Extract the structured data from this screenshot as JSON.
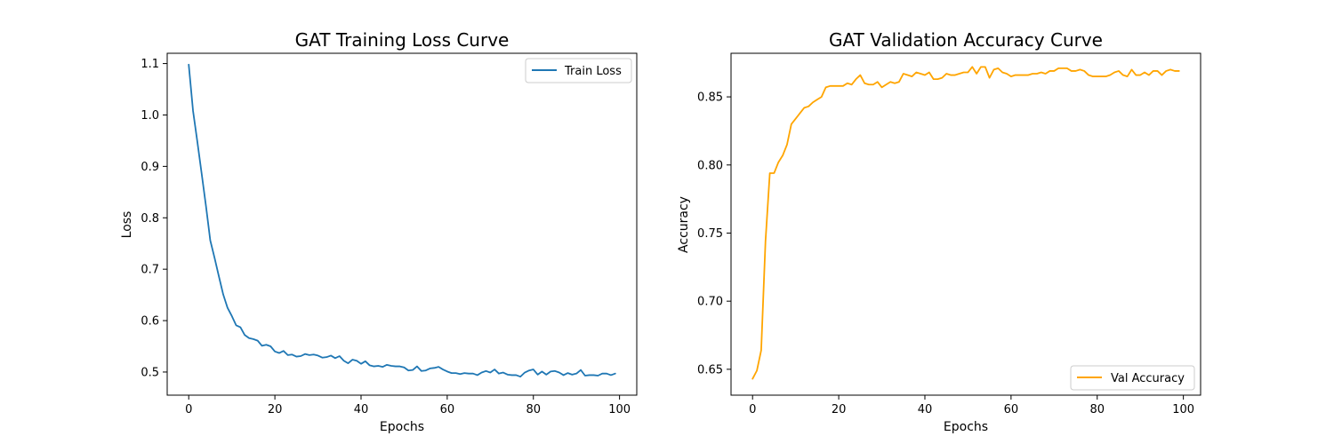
{
  "chart_data": [
    {
      "type": "line",
      "title": "GAT Training Loss Curve",
      "xlabel": "Epochs",
      "ylabel": "Loss",
      "xlim": [
        -5,
        104
      ],
      "ylim": [
        0.455,
        1.12
      ],
      "xticks": [
        0,
        20,
        40,
        60,
        80,
        100
      ],
      "yticks": [
        0.5,
        0.6,
        0.7,
        0.8,
        0.9,
        1.0,
        1.1
      ],
      "ytick_format": 1,
      "grid": false,
      "legend": "top-right",
      "series": [
        {
          "name": "Train Loss",
          "color": "#1f77b4",
          "x": [
            0,
            1,
            2,
            3,
            4,
            5,
            6,
            7,
            8,
            9,
            10,
            11,
            12,
            13,
            14,
            15,
            16,
            17,
            18,
            19,
            20,
            21,
            22,
            23,
            24,
            25,
            26,
            27,
            28,
            29,
            30,
            31,
            32,
            33,
            34,
            35,
            36,
            37,
            38,
            39,
            40,
            41,
            42,
            43,
            44,
            45,
            46,
            47,
            48,
            49,
            50,
            51,
            52,
            53,
            54,
            55,
            56,
            57,
            58,
            59,
            60,
            61,
            62,
            63,
            64,
            65,
            66,
            67,
            68,
            69,
            70,
            71,
            72,
            73,
            74,
            75,
            76,
            77,
            78,
            79,
            80,
            81,
            82,
            83,
            84,
            85,
            86,
            87,
            88,
            89,
            90,
            91,
            92,
            93,
            94,
            95,
            96,
            97,
            98,
            99
          ],
          "values": [
            1.098,
            1.008,
            0.948,
            0.886,
            0.823,
            0.756,
            0.722,
            0.686,
            0.651,
            0.625,
            0.609,
            0.591,
            0.587,
            0.572,
            0.566,
            0.564,
            0.561,
            0.551,
            0.553,
            0.55,
            0.54,
            0.537,
            0.541,
            0.533,
            0.534,
            0.53,
            0.531,
            0.535,
            0.533,
            0.534,
            0.532,
            0.528,
            0.529,
            0.532,
            0.527,
            0.531,
            0.522,
            0.517,
            0.524,
            0.522,
            0.516,
            0.521,
            0.513,
            0.511,
            0.512,
            0.51,
            0.514,
            0.512,
            0.511,
            0.511,
            0.509,
            0.503,
            0.504,
            0.511,
            0.502,
            0.503,
            0.507,
            0.508,
            0.51,
            0.505,
            0.501,
            0.498,
            0.498,
            0.496,
            0.498,
            0.497,
            0.497,
            0.494,
            0.499,
            0.502,
            0.499,
            0.505,
            0.497,
            0.499,
            0.495,
            0.494,
            0.494,
            0.491,
            0.499,
            0.503,
            0.505,
            0.495,
            0.501,
            0.495,
            0.501,
            0.502,
            0.499,
            0.494,
            0.498,
            0.495,
            0.497,
            0.504,
            0.493,
            0.494,
            0.494,
            0.493,
            0.497,
            0.497,
            0.494,
            0.497
          ]
        }
      ]
    },
    {
      "type": "line",
      "title": "GAT Validation Accuracy Curve",
      "xlabel": "Epochs",
      "ylabel": "Accuracy",
      "xlim": [
        -5,
        104
      ],
      "ylim": [
        0.631,
        0.882
      ],
      "xticks": [
        0,
        20,
        40,
        60,
        80,
        100
      ],
      "yticks": [
        0.65,
        0.7,
        0.75,
        0.8,
        0.85
      ],
      "ytick_format": 2,
      "grid": false,
      "legend": "bottom-right",
      "series": [
        {
          "name": "Val Accuracy",
          "color": "#ffa500",
          "x": [
            0,
            1,
            2,
            3,
            4,
            5,
            6,
            7,
            8,
            9,
            10,
            11,
            12,
            13,
            14,
            15,
            16,
            17,
            18,
            19,
            20,
            21,
            22,
            23,
            24,
            25,
            26,
            27,
            28,
            29,
            30,
            31,
            32,
            33,
            34,
            35,
            36,
            37,
            38,
            39,
            40,
            41,
            42,
            43,
            44,
            45,
            46,
            47,
            48,
            49,
            50,
            51,
            52,
            53,
            54,
            55,
            56,
            57,
            58,
            59,
            60,
            61,
            62,
            63,
            64,
            65,
            66,
            67,
            68,
            69,
            70,
            71,
            72,
            73,
            74,
            75,
            76,
            77,
            78,
            79,
            80,
            81,
            82,
            83,
            84,
            85,
            86,
            87,
            88,
            89,
            90,
            91,
            92,
            93,
            94,
            95,
            96,
            97,
            98,
            99
          ],
          "values": [
            0.643,
            0.649,
            0.664,
            0.744,
            0.794,
            0.794,
            0.802,
            0.807,
            0.815,
            0.83,
            0.834,
            0.838,
            0.842,
            0.843,
            0.846,
            0.848,
            0.85,
            0.857,
            0.858,
            0.858,
            0.858,
            0.858,
            0.86,
            0.859,
            0.863,
            0.866,
            0.86,
            0.859,
            0.859,
            0.861,
            0.857,
            0.859,
            0.861,
            0.86,
            0.861,
            0.867,
            0.866,
            0.865,
            0.868,
            0.867,
            0.866,
            0.868,
            0.863,
            0.863,
            0.864,
            0.867,
            0.866,
            0.866,
            0.867,
            0.868,
            0.868,
            0.872,
            0.867,
            0.872,
            0.872,
            0.864,
            0.87,
            0.871,
            0.868,
            0.867,
            0.865,
            0.866,
            0.866,
            0.866,
            0.866,
            0.867,
            0.867,
            0.868,
            0.867,
            0.869,
            0.869,
            0.871,
            0.871,
            0.871,
            0.869,
            0.869,
            0.87,
            0.869,
            0.866,
            0.865,
            0.865,
            0.865,
            0.865,
            0.866,
            0.868,
            0.869,
            0.866,
            0.865,
            0.87,
            0.866,
            0.866,
            0.868,
            0.866,
            0.869,
            0.869,
            0.866,
            0.869,
            0.87,
            0.869,
            0.869
          ]
        }
      ]
    }
  ]
}
